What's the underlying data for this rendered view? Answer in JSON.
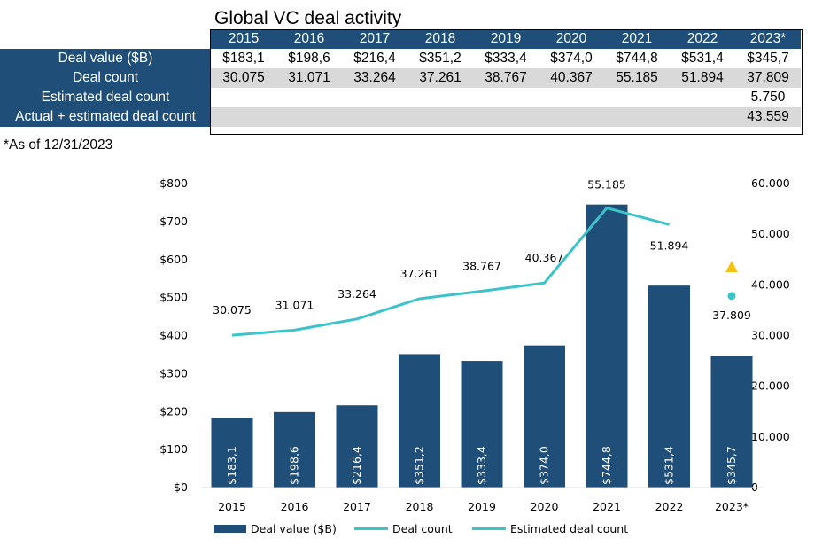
{
  "table": {
    "title": "Global VC deal activity",
    "years": [
      "2015",
      "2016",
      "2017",
      "2018",
      "2019",
      "2020",
      "2021",
      "2022",
      "2023*"
    ],
    "rows": [
      {
        "label": "Deal value ($B)",
        "values": [
          "$183,1",
          "$198,6",
          "$216,4",
          "$351,2",
          "$333,4",
          "$374,0",
          "$744,8",
          "$531,4",
          "$345,7"
        ]
      },
      {
        "label": "Deal count",
        "values": [
          "30.075",
          "31.071",
          "33.264",
          "37.261",
          "38.767",
          "40.367",
          "55.185",
          "51.894",
          "37.809"
        ]
      },
      {
        "label": "Estimated deal count",
        "values": [
          "",
          "",
          "",
          "",
          "",
          "",
          "",
          "",
          "5.750"
        ]
      },
      {
        "label": "Actual + estimated deal count",
        "values": [
          "",
          "",
          "",
          "",
          "",
          "",
          "",
          "",
          "43.559"
        ]
      }
    ],
    "note": "*As of 12/31/2023"
  },
  "chart_data": {
    "type": "bar",
    "categories": [
      "2015",
      "2016",
      "2017",
      "2018",
      "2019",
      "2020",
      "2021",
      "2022",
      "2023*"
    ],
    "series": [
      {
        "name": "Deal value ($B)",
        "type": "bar",
        "axis": "left",
        "values": [
          183.1,
          198.6,
          216.4,
          351.2,
          333.4,
          374.0,
          744.8,
          531.4,
          345.7
        ],
        "labels": [
          "$183,1",
          "$198,6",
          "$216,4",
          "$351,2",
          "$333,4",
          "$374,0",
          "$744,8",
          "$531,4",
          "$345,7"
        ],
        "color": "#1f4e79"
      },
      {
        "name": "Deal count",
        "type": "line",
        "axis": "right",
        "values": [
          30075,
          31071,
          33264,
          37261,
          38767,
          40367,
          55185,
          51894,
          null
        ],
        "labels": [
          "30.075",
          "31.071",
          "33.264",
          "37.261",
          "38.767",
          "40.367",
          "55.185",
          "51.894",
          ""
        ],
        "color": "#3cc3c9"
      },
      {
        "name": "Estimated deal count",
        "type": "line",
        "axis": "right",
        "values": [
          null,
          null,
          null,
          null,
          null,
          null,
          null,
          null,
          null
        ],
        "color": "#3cc3c9"
      },
      {
        "name": "2023 deal count (marker)",
        "type": "point",
        "axis": "right",
        "values": [
          null,
          null,
          null,
          null,
          null,
          null,
          null,
          null,
          37809
        ],
        "labels": [
          "",
          "",
          "",
          "",
          "",
          "",
          "",
          "",
          "37.809"
        ],
        "color": "#3cc3c9"
      },
      {
        "name": "2023 actual + estimated (marker)",
        "type": "triangle",
        "axis": "right",
        "values": [
          null,
          null,
          null,
          null,
          null,
          null,
          null,
          null,
          43559
        ],
        "color": "#f2c40f"
      }
    ],
    "left_axis": {
      "ylim": [
        0,
        800
      ],
      "ticks": [
        0,
        100,
        200,
        300,
        400,
        500,
        600,
        700,
        800
      ],
      "tick_labels": [
        "$0",
        "$100",
        "$200",
        "$300",
        "$400",
        "$500",
        "$600",
        "$700",
        "$800"
      ]
    },
    "right_axis": {
      "ylim": [
        0,
        60000
      ],
      "ticks": [
        0,
        10000,
        20000,
        30000,
        40000,
        50000,
        60000
      ],
      "tick_labels": [
        "0",
        "10.000",
        "20.000",
        "30.000",
        "40.000",
        "50.000",
        "60.000"
      ]
    },
    "legend_position": "bottom",
    "grid": false
  }
}
